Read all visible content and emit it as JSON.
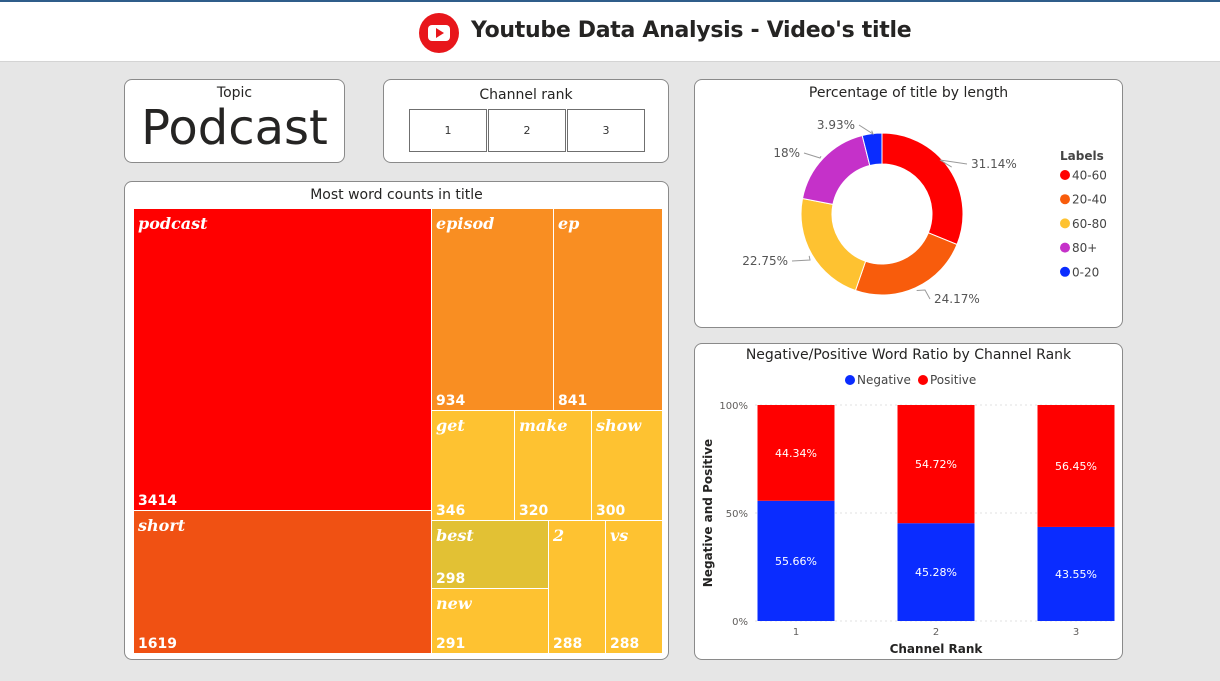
{
  "header": {
    "title": "Youtube Data Analysis - Video's title"
  },
  "topic": {
    "label": "Topic",
    "value": "Podcast"
  },
  "channel_rank": {
    "label": "Channel rank",
    "options": [
      "1",
      "2",
      "3"
    ]
  },
  "colors": {
    "c40_60": "#ff0000",
    "c20_40": "#f85c0c",
    "c60_80": "#fec231",
    "c80plus": "#c531c9",
    "c0_20": "#0a2cff",
    "negative": "#0a2cff",
    "positive": "#ff0000"
  },
  "chart_data": [
    {
      "type": "treemap",
      "title": "Most word counts in title",
      "items": [
        {
          "word": "podcast",
          "count": "3414",
          "color": "#ff0000"
        },
        {
          "word": "short",
          "count": "1619",
          "color": "#f05113"
        },
        {
          "word": "episod",
          "count": "934",
          "color": "#f98e22"
        },
        {
          "word": "ep",
          "count": "841",
          "color": "#f98e22"
        },
        {
          "word": "get",
          "count": "346",
          "color": "#fec231"
        },
        {
          "word": "make",
          "count": "320",
          "color": "#fec231"
        },
        {
          "word": "show",
          "count": "300",
          "color": "#fec231"
        },
        {
          "word": "best",
          "count": "298",
          "color": "#e2c134"
        },
        {
          "word": "new",
          "count": "291",
          "color": "#fec231"
        },
        {
          "word": "2",
          "count": "288",
          "color": "#fec231"
        },
        {
          "word": "vs",
          "count": "288",
          "color": "#fec231"
        }
      ]
    },
    {
      "type": "pie",
      "title": "Percentage of title by length",
      "legend_title": "Labels",
      "legend_position": "right",
      "slices": [
        {
          "label": "40-60",
          "value": 31.14,
          "display": "31.14%",
          "color": "#ff0000"
        },
        {
          "label": "20-40",
          "value": 24.17,
          "display": "24.17%",
          "color": "#f85c0c"
        },
        {
          "label": "60-80",
          "value": 22.75,
          "display": "22.75%",
          "color": "#fec231"
        },
        {
          "label": "80+",
          "value": 18.0,
          "display": "18%",
          "color": "#c531c9"
        },
        {
          "label": "0-20",
          "value": 3.93,
          "display": "3.93%",
          "color": "#0a2cff"
        }
      ]
    },
    {
      "type": "bar",
      "stacked": "100%",
      "title": "Negative/Positive Word Ratio by Channel Rank",
      "xlabel": "Channel Rank",
      "ylabel": "Negative and Positive",
      "yticks": [
        "0%",
        "50%",
        "100%"
      ],
      "legend_position": "top-center",
      "categories": [
        "1",
        "2",
        "3"
      ],
      "series": [
        {
          "name": "Negative",
          "color": "#0a2cff",
          "values": [
            55.66,
            45.28,
            43.55
          ],
          "labels": [
            "55.66%",
            "45.28%",
            "43.55%"
          ]
        },
        {
          "name": "Positive",
          "color": "#ff0000",
          "values": [
            44.34,
            54.72,
            56.45
          ],
          "labels": [
            "44.34%",
            "54.72%",
            "56.45%"
          ]
        }
      ]
    }
  ]
}
